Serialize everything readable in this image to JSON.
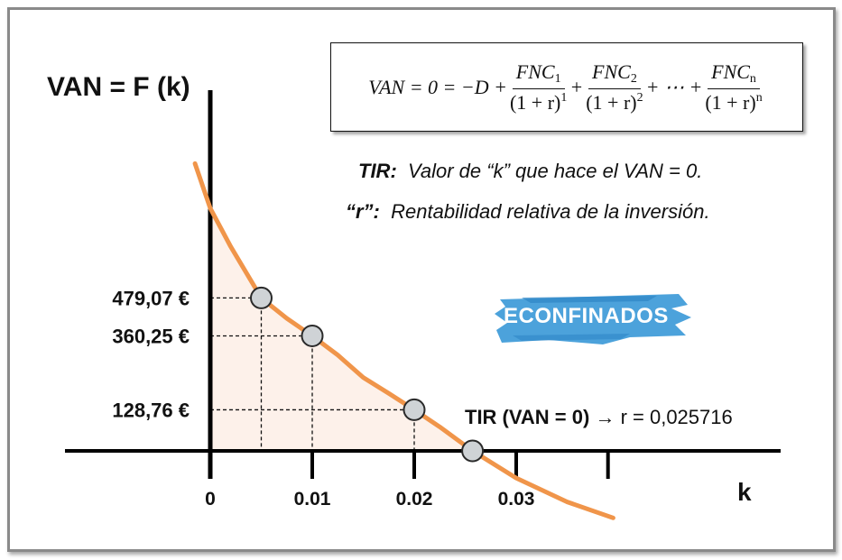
{
  "chart_data": {
    "type": "line",
    "title": "",
    "ylabel": "VAN = F (k)",
    "xlabel": "k",
    "x_ticks": [
      "0",
      "0.01",
      "0.02",
      "0.03"
    ],
    "y_ticks": [
      "479,07 €",
      "360,25 €",
      "128,76 €"
    ],
    "series": [
      {
        "values": [
          {
            "x": -0.0015,
            "y": 900
          },
          {
            "x": 0.0,
            "y": 760
          },
          {
            "x": 0.002,
            "y": 640
          },
          {
            "x": 0.005,
            "y": 479.07
          },
          {
            "x": 0.0075,
            "y": 415
          },
          {
            "x": 0.01,
            "y": 360.25
          },
          {
            "x": 0.0125,
            "y": 300
          },
          {
            "x": 0.015,
            "y": 230
          },
          {
            "x": 0.0175,
            "y": 180
          },
          {
            "x": 0.02,
            "y": 128.76
          },
          {
            "x": 0.0225,
            "y": 75
          },
          {
            "x": 0.025716,
            "y": 0
          },
          {
            "x": 0.03,
            "y": -85
          },
          {
            "x": 0.035,
            "y": -160
          },
          {
            "x": 0.0395,
            "y": -210
          }
        ]
      }
    ],
    "points": [
      {
        "x": 0.005,
        "y": 479.07
      },
      {
        "x": 0.01,
        "y": 360.25
      },
      {
        "x": 0.02,
        "y": 128.76
      },
      {
        "x": 0.025716,
        "y": 0
      }
    ],
    "x_major_ticks": [
      0,
      0.01,
      0.02,
      0.03,
      0.039
    ],
    "xlim": [
      -0.0015,
      0.0395
    ],
    "colors": {
      "curve": "#f0954a",
      "fill": "#fdf1ea",
      "marker": "#cfd3d6",
      "axis": "#000000"
    }
  },
  "formula": {
    "lhs": "VAN = 0 = −D +",
    "t1_num": "FNC",
    "t1_num_sub": "1",
    "t1_den": "(1 + r)",
    "t1_den_sup": "1",
    "plus1": "+",
    "t2_num": "FNC",
    "t2_num_sub": "2",
    "t2_den": "(1 + r)",
    "t2_den_sup": "2",
    "dots": "+ ⋯ +",
    "tn_num": "FNC",
    "tn_num_sub": "n",
    "tn_den": "(1 + r)",
    "tn_den_sup": "n"
  },
  "notes": {
    "tir_label": "TIR:",
    "tir_text": "Valor de “k” que hace el VAN = 0.",
    "r_label": "“r”:",
    "r_text": "Rentabilidad relativa de la inversión."
  },
  "annotation": {
    "label": "TIR (VAN = 0)",
    "arrow": "→",
    "value": "r = 0,025716"
  },
  "logo": {
    "text": "ECONFINADOS",
    "color": "#3d9ad8"
  }
}
